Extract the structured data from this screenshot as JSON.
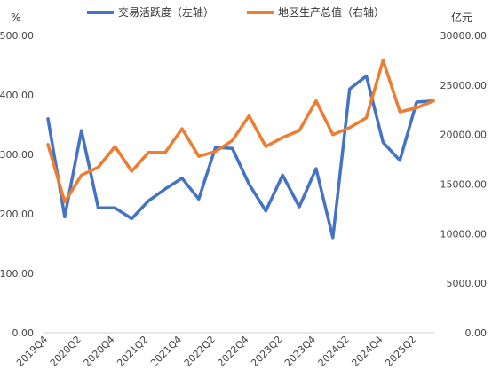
{
  "chart_data": {
    "type": "line",
    "title": "",
    "x": [
      "2019Q4",
      "2020Q1",
      "2020Q2",
      "2020Q3",
      "2020Q4",
      "2021Q1",
      "2021Q2",
      "2021Q3",
      "2021Q4",
      "2022Q1",
      "2022Q2",
      "2022Q3",
      "2022Q4",
      "2023Q1",
      "2023Q2",
      "2023Q3",
      "2023Q4",
      "2024Q1",
      "2024Q2",
      "2024Q3",
      "2024Q4",
      "2025Q1",
      "2025Q2",
      "2025Q3"
    ],
    "x_tick_labels": [
      "2019Q4",
      "2020Q2",
      "2020Q4",
      "2021Q2",
      "2021Q4",
      "2022Q2",
      "2022Q4",
      "2023Q2",
      "2023Q4",
      "2024Q2",
      "2024Q4",
      "2025Q2"
    ],
    "left_axis": {
      "label": "%",
      "min": 0,
      "max": 500,
      "ticks": [
        "0.00",
        "100.00",
        "200.00",
        "300.00",
        "400.00",
        "500.00"
      ]
    },
    "right_axis": {
      "label": "亿元",
      "min": 0,
      "max": 30000,
      "ticks": [
        "0.00",
        "5000.00",
        "10000.00",
        "15000.00",
        "20000.00",
        "25000.00",
        "30000.00"
      ]
    },
    "series": [
      {
        "name": "交易活跃度（左轴）",
        "axis": "left",
        "color": "#4472C4",
        "values": [
          360,
          195,
          340,
          210,
          210,
          192,
          222,
          242,
          260,
          225,
          312,
          310,
          250,
          205,
          265,
          212,
          276,
          160,
          410,
          432,
          320,
          290,
          388,
          390
        ]
      },
      {
        "name": "地区生产总值（右轴）",
        "axis": "right",
        "color": "#ED7D31",
        "values": [
          19000,
          13200,
          15900,
          16700,
          18800,
          16300,
          18200,
          18200,
          20600,
          17800,
          18300,
          19400,
          21900,
          18800,
          19700,
          20400,
          23400,
          20000,
          20700,
          21700,
          27500,
          22300,
          22700,
          23400
        ]
      }
    ],
    "legend_position": "top",
    "grid": false
  }
}
